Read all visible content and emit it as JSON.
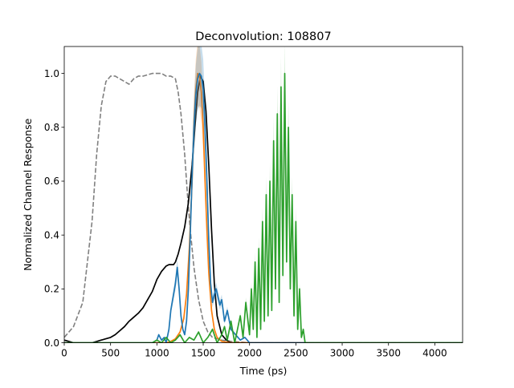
{
  "chart_data": {
    "type": "line",
    "title": "Deconvolution: 108807",
    "xlabel": "Time (ps)",
    "ylabel": "Normalized Channel Response",
    "xlim": [
      0,
      4300
    ],
    "ylim": [
      0,
      1.1
    ],
    "xticks": [
      0,
      500,
      1000,
      1500,
      2000,
      2500,
      3000,
      3500,
      4000
    ],
    "yticks": [
      0.0,
      0.2,
      0.4,
      0.6,
      0.8,
      1.0
    ],
    "xtick_labels": [
      "0",
      "500",
      "1000",
      "1500",
      "2000",
      "2500",
      "3000",
      "3500",
      "4000"
    ],
    "ytick_labels": [
      "0.0",
      "0.2",
      "0.4",
      "0.6",
      "0.8",
      "1.0"
    ],
    "grid": false,
    "series": [
      {
        "color": "#808080",
        "style": "dashed",
        "x": [
          0,
          100,
          200,
          300,
          350,
          400,
          450,
          500,
          550,
          600,
          650,
          700,
          750,
          800,
          850,
          900,
          950,
          1000,
          1050,
          1100,
          1150,
          1200,
          1230,
          1260,
          1300,
          1330,
          1360,
          1400,
          1450,
          1500,
          1550,
          1600,
          1700,
          1800,
          2000,
          2500,
          3000,
          3500,
          4300
        ],
        "y": [
          0.02,
          0.06,
          0.15,
          0.45,
          0.7,
          0.88,
          0.97,
          0.99,
          0.99,
          0.98,
          0.97,
          0.96,
          0.98,
          0.99,
          0.99,
          0.995,
          1.0,
          1.0,
          1.0,
          0.99,
          0.99,
          0.98,
          0.93,
          0.85,
          0.7,
          0.55,
          0.42,
          0.28,
          0.16,
          0.08,
          0.04,
          0.02,
          0.01,
          0.005,
          0.0,
          0.0,
          0.0,
          0.0,
          0.0
        ]
      },
      {
        "color": "#000000",
        "style": "solid",
        "x": [
          0,
          100,
          200,
          300,
          350,
          400,
          450,
          500,
          550,
          600,
          650,
          700,
          750,
          800,
          850,
          900,
          950,
          1000,
          1050,
          1100,
          1130,
          1150,
          1180,
          1200,
          1230,
          1260,
          1300,
          1340,
          1380,
          1410,
          1440,
          1470,
          1500,
          1530,
          1560,
          1590,
          1620,
          1650,
          1700,
          1750,
          1800,
          1900,
          2000,
          4300
        ],
        "y": [
          0.01,
          0.0,
          0.0,
          0.0,
          0.005,
          0.01,
          0.015,
          0.02,
          0.03,
          0.045,
          0.06,
          0.08,
          0.095,
          0.11,
          0.13,
          0.16,
          0.19,
          0.235,
          0.265,
          0.285,
          0.29,
          0.29,
          0.29,
          0.3,
          0.33,
          0.37,
          0.43,
          0.52,
          0.66,
          0.8,
          0.93,
          0.99,
          0.97,
          0.86,
          0.66,
          0.42,
          0.22,
          0.1,
          0.03,
          0.01,
          0.0,
          0.0,
          0.0,
          0.0
        ]
      },
      {
        "color": "#ff7f0e",
        "style": "solid",
        "x": [
          0,
          1000,
          1100,
          1150,
          1200,
          1250,
          1290,
          1320,
          1350,
          1380,
          1400,
          1420,
          1440,
          1460,
          1480,
          1500,
          1520,
          1540,
          1560,
          1590,
          1620,
          1650,
          1700,
          1800,
          2000,
          4300
        ],
        "y": [
          0.0,
          0.0,
          0.0,
          0.005,
          0.015,
          0.04,
          0.09,
          0.18,
          0.35,
          0.6,
          0.82,
          0.94,
          1.0,
          0.99,
          0.93,
          0.8,
          0.6,
          0.42,
          0.26,
          0.12,
          0.05,
          0.02,
          0.005,
          0.0,
          0.0,
          0.0
        ]
      },
      {
        "color": "#1f77b4",
        "style": "solid",
        "x": [
          0,
          900,
          950,
          1000,
          1020,
          1050,
          1080,
          1100,
          1130,
          1150,
          1180,
          1200,
          1220,
          1240,
          1260,
          1280,
          1300,
          1320,
          1340,
          1360,
          1380,
          1400,
          1420,
          1440,
          1460,
          1480,
          1500,
          1520,
          1540,
          1560,
          1580,
          1600,
          1620,
          1640,
          1660,
          1680,
          1700,
          1730,
          1760,
          1800,
          1850,
          1900,
          1950,
          2000,
          4300
        ],
        "y": [
          0.0,
          0.0,
          0.0,
          0.01,
          0.03,
          0.01,
          0.02,
          0.0,
          0.05,
          0.12,
          0.18,
          0.22,
          0.28,
          0.2,
          0.1,
          0.05,
          0.03,
          0.08,
          0.2,
          0.4,
          0.62,
          0.8,
          0.92,
          0.98,
          1.0,
          0.99,
          0.94,
          0.8,
          0.6,
          0.38,
          0.22,
          0.15,
          0.18,
          0.2,
          0.17,
          0.14,
          0.16,
          0.08,
          0.12,
          0.05,
          0.03,
          0.01,
          0.02,
          0.0,
          0.0
        ]
      },
      {
        "color": "#2ca02c",
        "style": "solid",
        "x": [
          0,
          950,
          1000,
          1050,
          1100,
          1150,
          1200,
          1250,
          1300,
          1350,
          1400,
          1450,
          1500,
          1550,
          1600,
          1650,
          1700,
          1730,
          1760,
          1800,
          1840,
          1870,
          1900,
          1930,
          1960,
          2000,
          2020,
          2040,
          2060,
          2080,
          2100,
          2120,
          2140,
          2160,
          2180,
          2200,
          2220,
          2240,
          2260,
          2280,
          2300,
          2320,
          2340,
          2360,
          2380,
          2400,
          2420,
          2440,
          2460,
          2480,
          2500,
          2520,
          2540,
          2560,
          2580,
          2600,
          2650,
          2700,
          3000,
          4300
        ],
        "y": [
          0.0,
          0.0,
          0.01,
          0.0,
          0.02,
          0.0,
          0.01,
          0.03,
          0.0,
          0.02,
          0.01,
          0.04,
          0.0,
          0.02,
          0.05,
          0.0,
          0.03,
          0.06,
          0.01,
          0.08,
          0.0,
          0.05,
          0.1,
          0.02,
          0.15,
          0.03,
          0.2,
          0.05,
          0.3,
          0.02,
          0.35,
          0.05,
          0.45,
          0.08,
          0.55,
          0.1,
          0.6,
          0.12,
          0.75,
          0.2,
          0.85,
          0.15,
          0.95,
          0.25,
          1.0,
          0.3,
          0.8,
          0.2,
          0.55,
          0.1,
          0.45,
          0.05,
          0.2,
          0.02,
          0.05,
          0.0,
          0.0,
          0.0,
          0.0,
          0.0
        ]
      }
    ]
  }
}
